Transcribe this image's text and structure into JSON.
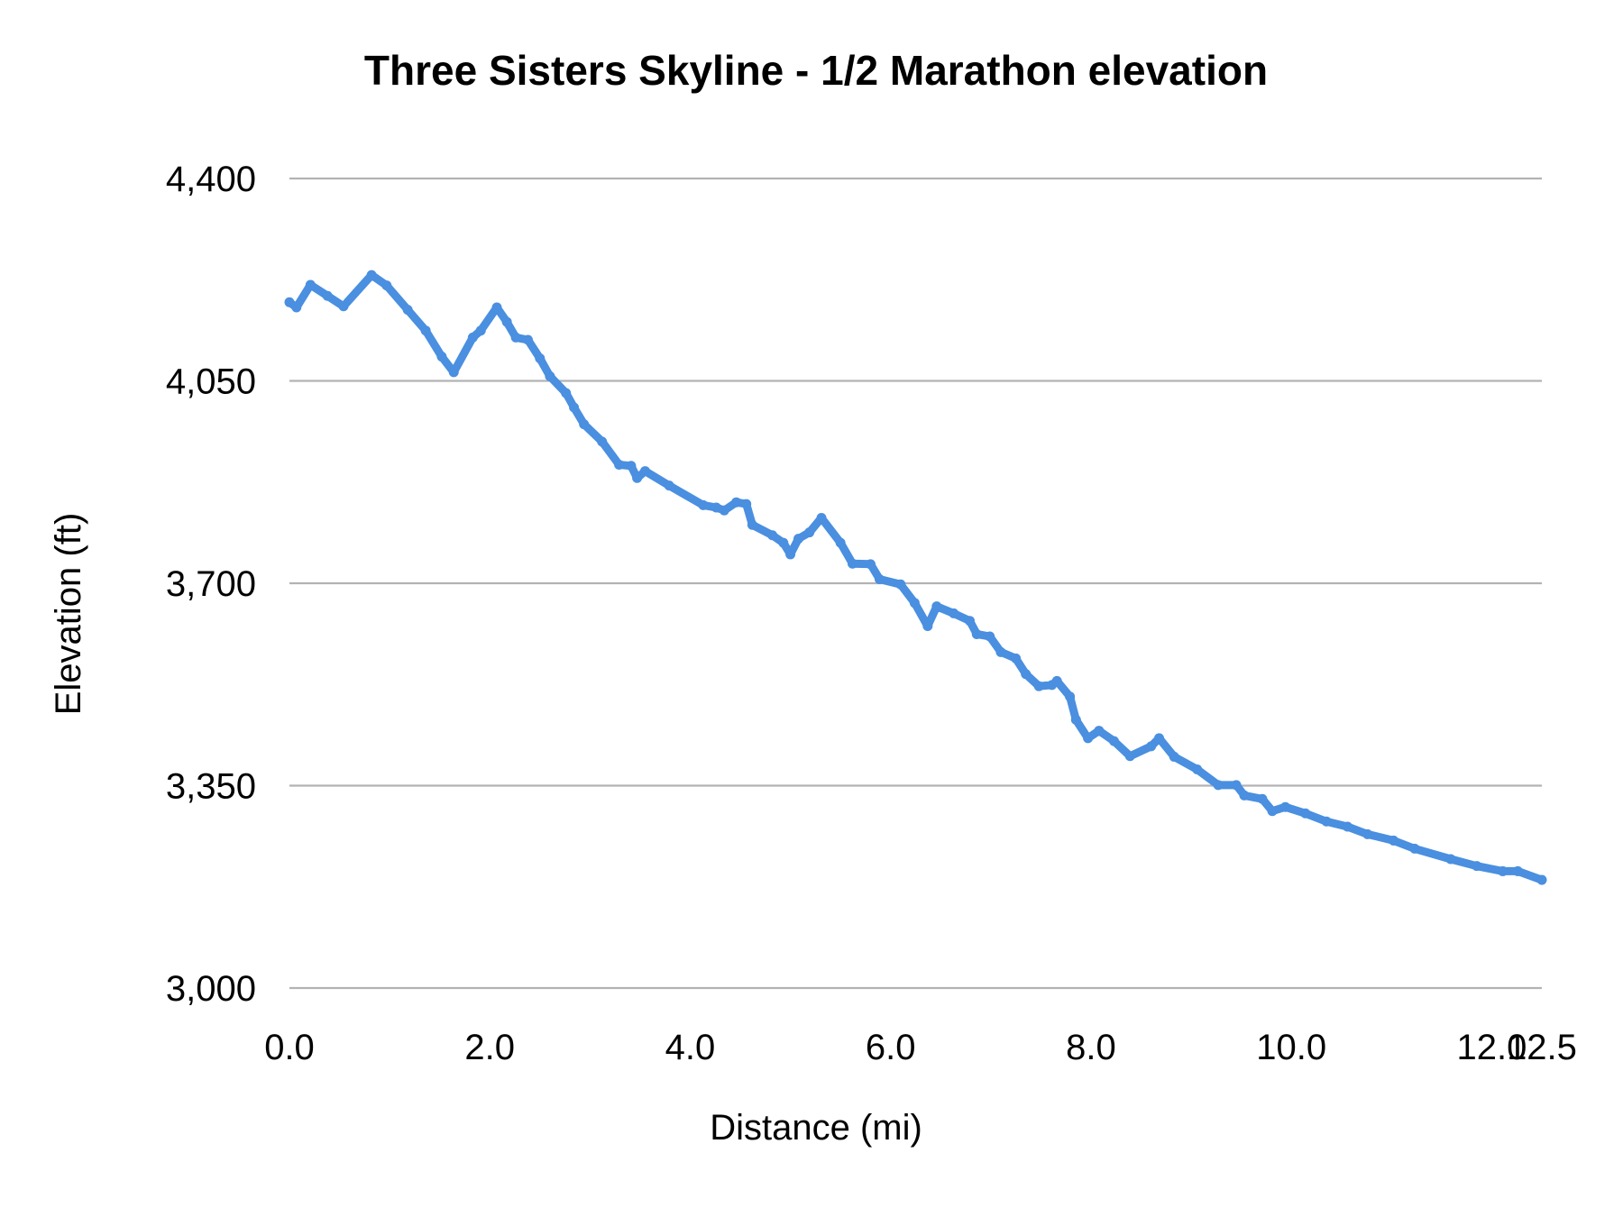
{
  "chart_data": {
    "type": "line",
    "title": "Three Sisters Skyline - 1/2 Marathon elevation",
    "xlabel": "Distance (mi)",
    "ylabel": "Elevation (ft)",
    "xlim": [
      0,
      12.5
    ],
    "ylim": [
      3000,
      4400
    ],
    "x_ticks": [
      "0.0",
      "2.0",
      "4.0",
      "6.0",
      "8.0",
      "10.0",
      "12.0",
      "12.5"
    ],
    "x_tick_values": [
      0,
      2,
      4,
      6,
      8,
      10,
      12,
      12.5
    ],
    "y_ticks": [
      "3,000",
      "3,350",
      "3,700",
      "4,050",
      "4,400"
    ],
    "y_tick_values": [
      3000,
      3350,
      3700,
      4050,
      4400
    ],
    "grid": "horizontal",
    "legend": "none",
    "series_color": "#4a8fe0",
    "series": [
      {
        "x": [
          0,
          0.07,
          0.21,
          0.38,
          0.54,
          0.82,
          0.97,
          1.18,
          1.36,
          1.52,
          1.64,
          1.83,
          1.91,
          2.07,
          2.17,
          2.26,
          2.38,
          2.5,
          2.6,
          2.76,
          2.84,
          2.94,
          3.12,
          3.29,
          3.41,
          3.47,
          3.55,
          3.79,
          4.13,
          4.26,
          4.34,
          4.46,
          4.56,
          4.62,
          4.82,
          4.93,
          5.0,
          5.08,
          5.19,
          5.31,
          5.5,
          5.62,
          5.8,
          5.89,
          6.1,
          6.24,
          6.37,
          6.46,
          6.63,
          6.79,
          6.86,
          6.99,
          7.1,
          7.25,
          7.35,
          7.48,
          7.61,
          7.66,
          7.79,
          7.85,
          7.97,
          8.08,
          8.23,
          8.39,
          8.6,
          8.68,
          8.83,
          9.06,
          9.27,
          9.45,
          9.53,
          9.71,
          9.81,
          9.94,
          10.14,
          10.35,
          10.56,
          10.76,
          11.02,
          11.23,
          11.59,
          11.85,
          12.11,
          12.26,
          12.5
        ],
        "y": [
          4186,
          4177,
          4216,
          4197,
          4179,
          4233,
          4215,
          4173,
          4137,
          4092,
          4065,
          4125,
          4137,
          4177,
          4152,
          4125,
          4121,
          4089,
          4058,
          4029,
          4004,
          3975,
          3945,
          3905,
          3903,
          3882,
          3894,
          3869,
          3835,
          3831,
          3826,
          3840,
          3837,
          3801,
          3783,
          3770,
          3750,
          3777,
          3788,
          3813,
          3770,
          3734,
          3733,
          3707,
          3698,
          3666,
          3626,
          3660,
          3648,
          3635,
          3612,
          3608,
          3581,
          3570,
          3543,
          3522,
          3524,
          3531,
          3504,
          3464,
          3432,
          3445,
          3427,
          3401,
          3418,
          3432,
          3400,
          3378,
          3351,
          3351,
          3333,
          3327,
          3306,
          3313,
          3302,
          3288,
          3279,
          3266,
          3255,
          3241,
          3223,
          3211,
          3202,
          3202,
          3187
        ]
      }
    ]
  }
}
